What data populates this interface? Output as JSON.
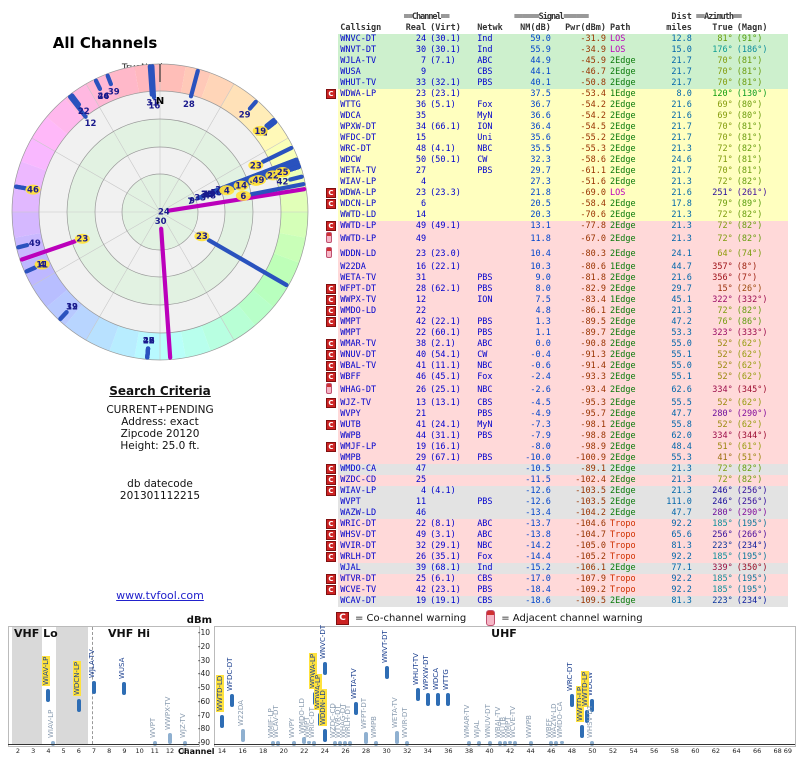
{
  "polar": {
    "title": "All Channels",
    "true_north": "TrueNorth",
    "north": "N"
  },
  "criteria": {
    "title": "Search Criteria",
    "lines": [
      "CURRENT+PENDING",
      "Address: exact",
      "Zipcode 20120",
      "Height: 25.0 ft."
    ],
    "datecode_label": "db datecode",
    "datecode": "201301112215",
    "link": "www.tvfool.com"
  },
  "table": {
    "group_headers": {
      "channel": "==Channel==",
      "signal": "======Signal======",
      "dist": "Dist",
      "azimuth": "==Azimuth=="
    },
    "col_headers": {
      "callsign": "Callsign",
      "real": "Real",
      "virt": "(Virt)",
      "netwk": "Netwk",
      "nm": "NM(dB)",
      "pwr": "Pwr(dBm)",
      "path": "Path",
      "miles": "miles",
      "true": "True",
      "magn": "(Magn)"
    },
    "rows": [
      [
        "",
        "WNVC-DT",
        "24",
        "(30.1)",
        "Ind",
        "59.0",
        "-31.9",
        "LOS",
        "12.8",
        81,
        91,
        "g"
      ],
      [
        "",
        "WNVT-DT",
        "30",
        "(30.1)",
        "Ind",
        "55.9",
        "-34.9",
        "LOS",
        "15.0",
        176,
        186,
        "g"
      ],
      [
        "",
        "WJLA-TV",
        "7",
        "(7.1)",
        "ABC",
        "44.9",
        "-45.9",
        "2Edge",
        "21.7",
        70,
        81,
        "g"
      ],
      [
        "",
        "WUSA",
        "9",
        "",
        "CBS",
        "44.1",
        "-46.7",
        "2Edge",
        "21.7",
        70,
        81,
        "g"
      ],
      [
        "",
        "WHUT-TV",
        "33",
        "(32.1)",
        "PBS",
        "40.1",
        "-50.8",
        "2Edge",
        "21.7",
        70,
        81,
        "g"
      ],
      [
        "C",
        "WDWA-LP",
        "23",
        "(23.1)",
        "",
        "37.5",
        "-53.4",
        "1Edge",
        "8.0",
        120,
        130,
        "y"
      ],
      [
        "",
        "WTTG",
        "36",
        "(5.1)",
        "Fox",
        "36.7",
        "-54.2",
        "2Edge",
        "21.6",
        69,
        80,
        "y"
      ],
      [
        "",
        "WDCA",
        "35",
        "",
        "MyN",
        "36.6",
        "-54.2",
        "2Edge",
        "21.6",
        69,
        80,
        "y"
      ],
      [
        "",
        "WPXW-DT",
        "34",
        "(66.1)",
        "ION",
        "36.4",
        "-54.5",
        "2Edge",
        "21.7",
        70,
        81,
        "y"
      ],
      [
        "",
        "WFDC-DT",
        "15",
        "",
        "Uni",
        "35.6",
        "-55.2",
        "2Edge",
        "21.7",
        70,
        81,
        "y"
      ],
      [
        "",
        "WRC-DT",
        "48",
        "(4.1)",
        "NBC",
        "35.5",
        "-55.3",
        "2Edge",
        "21.3",
        72,
        82,
        "y"
      ],
      [
        "",
        "WDCW",
        "50",
        "(50.1)",
        "CW",
        "32.3",
        "-58.6",
        "2Edge",
        "24.6",
        71,
        81,
        "y"
      ],
      [
        "",
        "WETA-TV",
        "27",
        "",
        "PBS",
        "29.7",
        "-61.1",
        "2Edge",
        "21.7",
        70,
        81,
        "y"
      ],
      [
        "",
        "WIAV-LP",
        "4",
        "",
        "",
        "27.3",
        "-51.6",
        "2Edge",
        "21.3",
        72,
        82,
        "y"
      ],
      [
        "C",
        "WDWA-LP",
        "23",
        "(23.3)",
        "",
        "21.8",
        "-69.0",
        "LOS",
        "21.6",
        251,
        261,
        "y"
      ],
      [
        "C",
        "WDCN-LP",
        "6",
        "",
        "",
        "20.5",
        "-58.4",
        "2Edge",
        "17.8",
        79,
        89,
        "y"
      ],
      [
        "",
        "WWTD-LD",
        "14",
        "",
        "",
        "20.3",
        "-70.6",
        "2Edge",
        "21.3",
        72,
        82,
        "y"
      ],
      [
        "C",
        "WWTD-LP",
        "49",
        "(49.1)",
        "",
        "13.1",
        "-77.8",
        "2Edge",
        "21.3",
        72,
        82,
        "p"
      ],
      [
        "A",
        "WWTD-LP",
        "49",
        "",
        "",
        "11.8",
        "-67.0",
        "2Edge",
        "21.3",
        72,
        82,
        "p"
      ],
      [
        "A",
        "WDDN-LD",
        "23",
        "(23.0)",
        "",
        "10.4",
        "-80.3",
        "2Edge",
        "24.1",
        64,
        74,
        "p"
      ],
      [
        "",
        "W22DA",
        "16",
        "(22.1)",
        "",
        "10.3",
        "-80.6",
        "1Edge",
        "44.7",
        357,
        8,
        "p"
      ],
      [
        "",
        "WETA-TV",
        "31",
        "",
        "PBS",
        "9.0",
        "-81.8",
        "2Edge",
        "21.6",
        356,
        7,
        "p"
      ],
      [
        "C",
        "WFPT-DT",
        "28",
        "(62.1)",
        "PBS",
        "8.0",
        "-82.9",
        "2Edge",
        "29.7",
        15,
        26,
        "p"
      ],
      [
        "C",
        "WWPX-TV",
        "12",
        "",
        "ION",
        "7.5",
        "-83.4",
        "1Edge",
        "45.1",
        322,
        332,
        "p"
      ],
      [
        "C",
        "WMDO-LD",
        "22",
        "",
        "",
        "4.8",
        "-86.1",
        "2Edge",
        "21.3",
        72,
        82,
        "p"
      ],
      [
        "C",
        "WMPT",
        "42",
        "(22.1)",
        "PBS",
        "1.3",
        "-89.5",
        "2Edge",
        "47.2",
        76,
        86,
        "p"
      ],
      [
        "",
        "WMPT",
        "22",
        "(60.1)",
        "PBS",
        "1.1",
        "-89.7",
        "2Edge",
        "53.3",
        323,
        333,
        "p"
      ],
      [
        "C",
        "WMAR-TV",
        "38",
        "(2.1)",
        "ABC",
        "0.0",
        "-90.8",
        "2Edge",
        "55.0",
        52,
        62,
        "p"
      ],
      [
        "C",
        "WNUV-DT",
        "40",
        "(54.1)",
        "CW",
        "-0.4",
        "-91.3",
        "2Edge",
        "55.1",
        52,
        62,
        "p"
      ],
      [
        "C",
        "WBAL-TV",
        "41",
        "(11.1)",
        "NBC",
        "-0.6",
        "-91.4",
        "2Edge",
        "55.0",
        52,
        62,
        "p"
      ],
      [
        "C",
        "WBFF",
        "46",
        "(45.1)",
        "Fox",
        "-2.4",
        "-93.3",
        "2Edge",
        "55.1",
        52,
        62,
        "p"
      ],
      [
        "A",
        "WHAG-DT",
        "26",
        "(25.1)",
        "NBC",
        "-2.6",
        "-93.4",
        "2Edge",
        "62.6",
        334,
        345,
        "p"
      ],
      [
        "C",
        "WJZ-TV",
        "13",
        "(13.1)",
        "CBS",
        "-4.5",
        "-95.3",
        "2Edge",
        "55.5",
        52,
        62,
        "p"
      ],
      [
        "",
        "WVPY",
        "21",
        "",
        "PBS",
        "-4.9",
        "-95.7",
        "2Edge",
        "47.7",
        280,
        290,
        "p"
      ],
      [
        "C",
        "WUTB",
        "41",
        "(24.1)",
        "MyN",
        "-7.3",
        "-98.1",
        "2Edge",
        "55.8",
        52,
        62,
        "p"
      ],
      [
        "",
        "WWPB",
        "44",
        "(31.1)",
        "PBS",
        "-7.9",
        "-98.8",
        "2Edge",
        "62.0",
        334,
        344,
        "p"
      ],
      [
        "C",
        "WMJF-LP",
        "19",
        "(16.1)",
        "",
        "-8.0",
        "-98.9",
        "2Edge",
        "48.4",
        51,
        61,
        "p"
      ],
      [
        "",
        "WMPB",
        "29",
        "(67.1)",
        "PBS",
        "-10.0",
        "-100.9",
        "2Edge",
        "55.3",
        41,
        51,
        "p"
      ],
      [
        "C",
        "WMDO-CA",
        "47",
        "",
        "",
        "-10.5",
        "-89.1",
        "2Edge",
        "21.3",
        72,
        82,
        "x"
      ],
      [
        "C",
        "WZDC-CD",
        "25",
        "",
        "",
        "-11.5",
        "-102.4",
        "2Edge",
        "21.3",
        72,
        82,
        "p"
      ],
      [
        "C",
        "WIAV-LP",
        "4",
        "(4.1)",
        "",
        "-12.6",
        "-103.5",
        "2Edge",
        "21.3",
        246,
        256,
        "x"
      ],
      [
        "",
        "WVPT",
        "11",
        "",
        "PBS",
        "-12.6",
        "-103.5",
        "2Edge",
        "111.0",
        246,
        256,
        "x"
      ],
      [
        "",
        "WAZW-LD",
        "46",
        "",
        "",
        "-13.4",
        "-104.2",
        "2Edge",
        "47.7",
        280,
        290,
        "x"
      ],
      [
        "C",
        "WRIC-DT",
        "22",
        "(8.1)",
        "ABC",
        "-13.7",
        "-104.6",
        "Tropo",
        "92.2",
        185,
        195,
        "p"
      ],
      [
        "C",
        "WHSV-DT",
        "49",
        "(3.1)",
        "ABC",
        "-13.8",
        "-104.7",
        "Tropo",
        "65.6",
        256,
        266,
        "p"
      ],
      [
        "C",
        "WVIR-DT",
        "32",
        "(29.1)",
        "NBC",
        "-14.2",
        "-105.0",
        "Tropo",
        "81.3",
        223,
        234,
        "p"
      ],
      [
        "C",
        "WRLH-DT",
        "26",
        "(35.1)",
        "Fox",
        "-14.4",
        "-105.2",
        "Tropo",
        "92.2",
        185,
        195,
        "p"
      ],
      [
        "",
        "WJAL",
        "39",
        "(68.1)",
        "Ind",
        "-15.2",
        "-106.1",
        "2Edge",
        "77.1",
        339,
        350,
        "x"
      ],
      [
        "C",
        "WTVR-DT",
        "25",
        "(6.1)",
        "CBS",
        "-17.0",
        "-107.9",
        "Tropo",
        "92.2",
        185,
        195,
        "p"
      ],
      [
        "C",
        "WCVE-TV",
        "42",
        "(23.1)",
        "PBS",
        "-18.4",
        "-109.2",
        "Tropo",
        "92.2",
        185,
        195,
        "p"
      ],
      [
        "",
        "WCAV-DT",
        "19",
        "(19.1)",
        "CBS",
        "-18.6",
        "-109.5",
        "2Edge",
        "81.3",
        223,
        234,
        "x"
      ]
    ]
  },
  "legend": {
    "c_icon": "C",
    "c_text": "= Co-channel warning",
    "a_text": "= Adjacent channel warning"
  },
  "charts": {
    "dbm": "dBm",
    "channel": "Channel",
    "vhf_lo": "VHF Lo",
    "vhf_hi": "VHF Hi",
    "uhf": "UHF",
    "yticks": [
      -10,
      -20,
      -30,
      -40,
      -50,
      -60,
      -70,
      -80,
      -90
    ],
    "xticks_left": [
      2,
      3,
      4,
      5,
      6,
      7,
      8,
      9,
      10,
      11,
      12,
      13
    ],
    "xticks_right": [
      14,
      16,
      18,
      20,
      22,
      24,
      26,
      28,
      30,
      32,
      34,
      36,
      38,
      40,
      42,
      44,
      46,
      48,
      50,
      52,
      54,
      56,
      58,
      60,
      62,
      64,
      66,
      68,
      69
    ]
  },
  "colors": {
    "row_green": "#cdf0cd",
    "row_yellow": "#ffffbf",
    "row_pink": "#ffd9d9",
    "row_gray": "#e3e3e3",
    "path_los": "#bb00bb",
    "path_edge": "#0a7a0a",
    "path_tropo": "#d03000",
    "nm": "#0044cc",
    "pwr": "#993300",
    "dist": "#0066aa",
    "callsign": "#0000cc",
    "bar_strong": "#2e6db4",
    "bar_weak": "#8fb0d0",
    "lp_highlight": "#ffe23d",
    "c_warning": "#cc2222",
    "a_warning": "#f6b6c6"
  }
}
